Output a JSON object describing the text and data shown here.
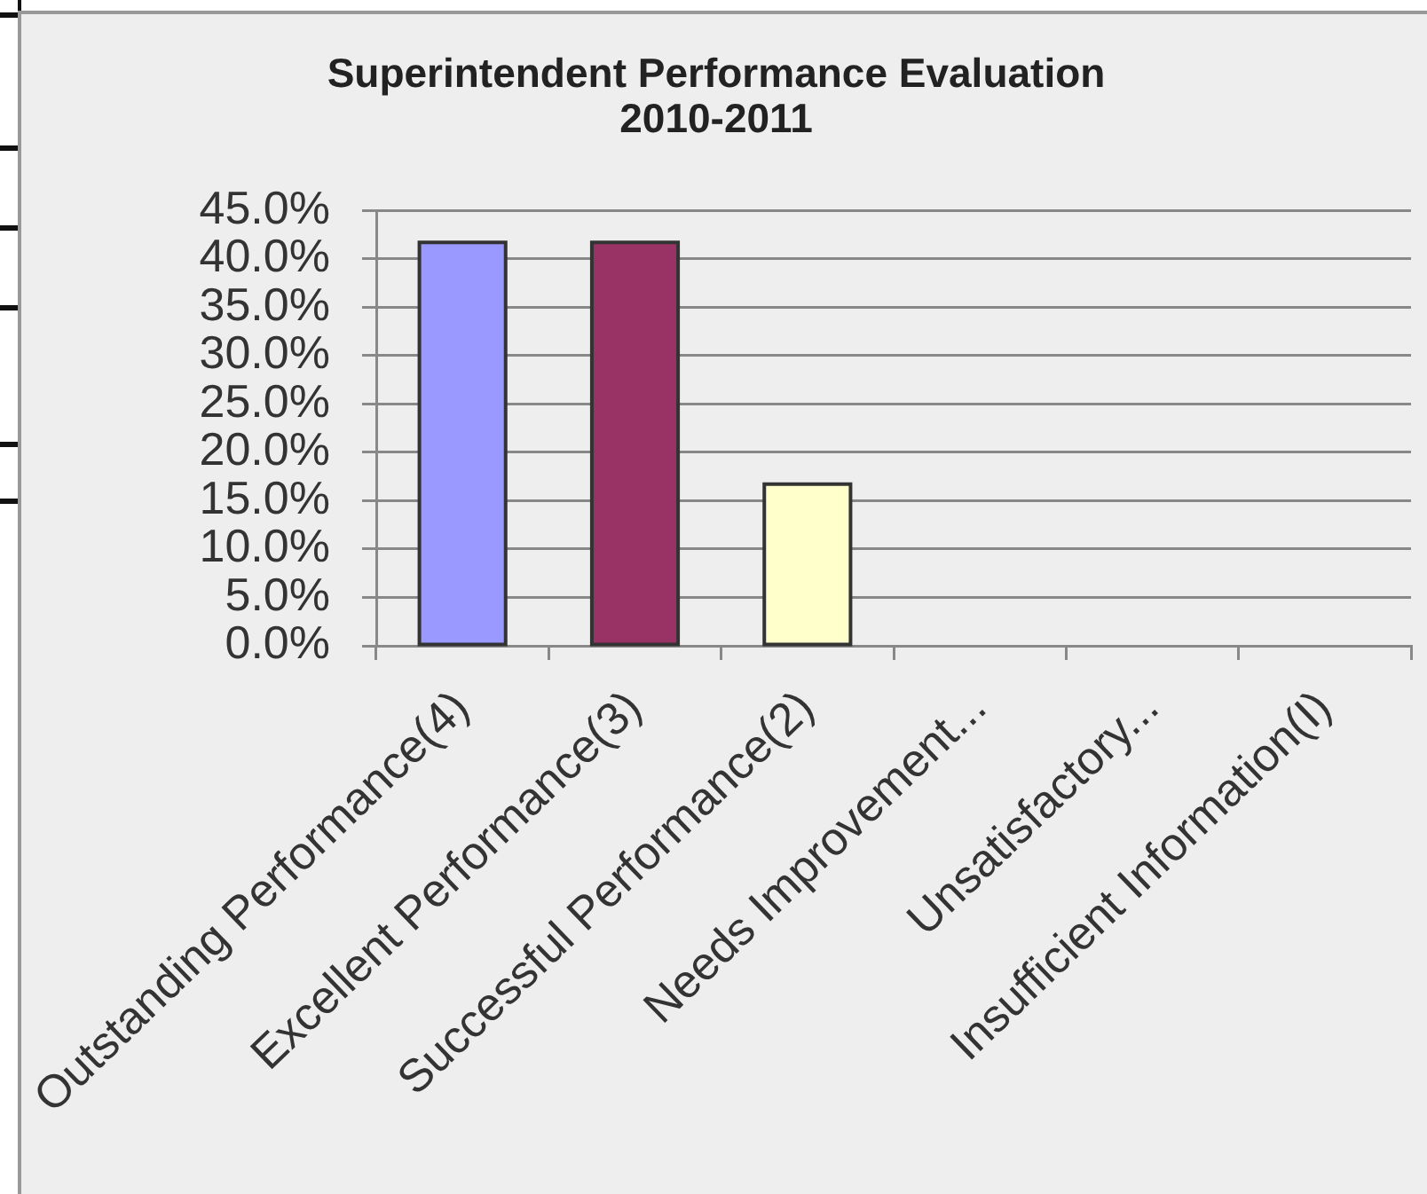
{
  "chart_data": {
    "type": "bar",
    "title": "Superintendent Performance Evaluation\n2010-2011",
    "categories": [
      "Outstanding Performance(4)",
      "Excellent Performance(3)",
      "Successful Performance(2)",
      "Needs Improvement...",
      "Unsatisfactory...",
      "Insufficient Information(I)"
    ],
    "values": [
      41.7,
      41.7,
      16.7,
      0,
      0,
      0
    ],
    "colors": [
      "#9999ff",
      "#993366",
      "#ffffcc",
      "#ccffff",
      "#660066",
      "#ff8080"
    ],
    "ylim": [
      0,
      45
    ],
    "yticks": [
      {
        "value": 0,
        "label": "0.0%"
      },
      {
        "value": 5,
        "label": "5.0%"
      },
      {
        "value": 10,
        "label": "10.0%"
      },
      {
        "value": 15,
        "label": "15.0%"
      },
      {
        "value": 20,
        "label": "20.0%"
      },
      {
        "value": 25,
        "label": "25.0%"
      },
      {
        "value": 30,
        "label": "30.0%"
      },
      {
        "value": 35,
        "label": "35.0%"
      },
      {
        "value": 40,
        "label": "40.0%"
      },
      {
        "value": 45,
        "label": "45.0%"
      }
    ],
    "grid": "y"
  }
}
